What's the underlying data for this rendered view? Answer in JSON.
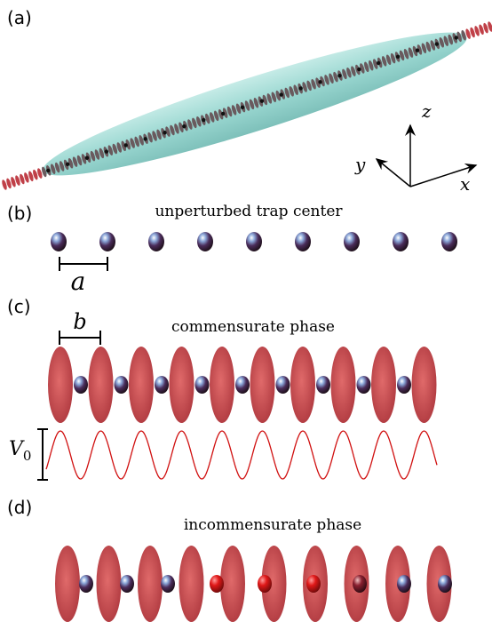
{
  "panels": [
    {
      "label": "(a)",
      "axes": {
        "z": "z",
        "y": "y",
        "x": "x"
      }
    },
    {
      "label": "(b)",
      "title": "unperturbed trap center",
      "spacing": "a"
    },
    {
      "label": "(c)",
      "title": "commensurate phase",
      "spacing": "b",
      "depth": {
        "symbol": "V",
        "subscript": "0"
      }
    },
    {
      "label": "(d)",
      "title": "incommensurate phase"
    }
  ]
}
